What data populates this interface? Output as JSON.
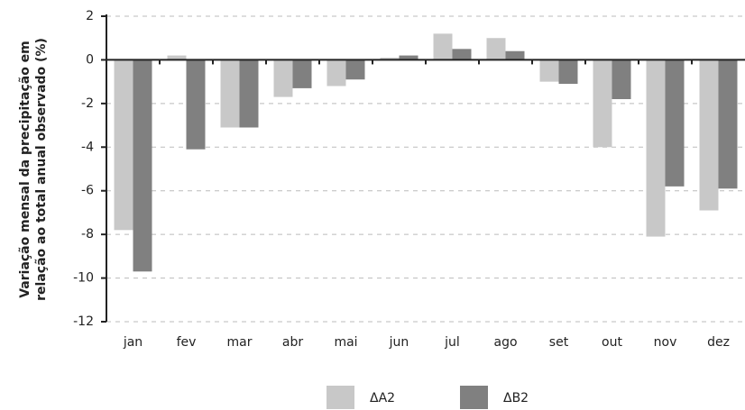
{
  "chart_data": {
    "type": "bar",
    "ylabel": [
      "Variação mensal da precipitação em",
      "relação ao total anual observado (%)"
    ],
    "categories": [
      "jan",
      "fev",
      "mar",
      "abr",
      "mai",
      "jun",
      "jul",
      "ago",
      "set",
      "out",
      "nov",
      "dez"
    ],
    "series": [
      {
        "name": "ΔA2",
        "color": "#c8c8c8",
        "values": [
          -7.8,
          0.2,
          -3.1,
          -1.7,
          -1.2,
          0.1,
          1.2,
          1.0,
          -1.0,
          -4.0,
          -8.1,
          -6.9
        ]
      },
      {
        "name": "ΔB2",
        "color": "#808080",
        "values": [
          -9.7,
          -4.1,
          -3.1,
          -1.3,
          -0.9,
          0.2,
          0.5,
          0.4,
          -1.1,
          -1.8,
          -5.8,
          -5.9
        ]
      }
    ],
    "ylim": [
      -12,
      2
    ],
    "yticks": [
      -12,
      -10,
      -8,
      -6,
      -4,
      -2,
      0,
      2
    ],
    "grid": true
  }
}
